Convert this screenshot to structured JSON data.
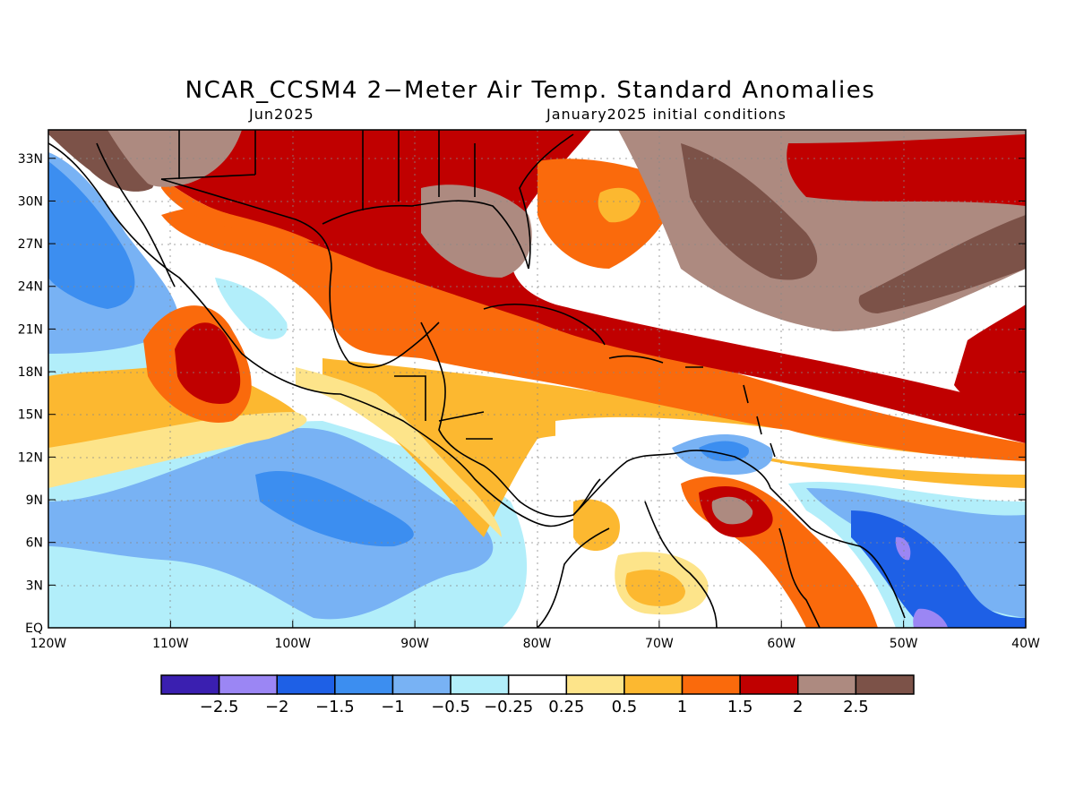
{
  "title": "NCAR_CCSM4 2−Meter Air Temp. Standard Anomalies",
  "subtitle_left": "Jun2025",
  "subtitle_right": "January2025 initial conditions",
  "map": {
    "region": "Gulf of Mexico, Caribbean, Central America, northern South America",
    "lon_range": [
      -120,
      -40
    ],
    "lat_range": [
      0,
      35
    ],
    "grid": "dotted",
    "x_ticks": [
      "120W",
      "110W",
      "100W",
      "90W",
      "80W",
      "70W",
      "60W",
      "50W",
      "40W"
    ],
    "y_ticks": [
      "EQ",
      "3N",
      "6N",
      "9N",
      "12N",
      "15N",
      "18N",
      "21N",
      "24N",
      "27N",
      "30N",
      "33N"
    ]
  },
  "colorbar": {
    "labels": [
      "−2.5",
      "−2",
      "−1.5",
      "−1",
      "−0.5",
      "−0.25",
      "0.25",
      "0.5",
      "1",
      "1.5",
      "2",
      "2.5"
    ],
    "colors": [
      "#3a1fb0",
      "#9b86f4",
      "#1e60e6",
      "#3c8ef0",
      "#78b2f4",
      "#b2eefa",
      "#ffffff",
      "#fde48a",
      "#fcb830",
      "#fa6a0c",
      "#c00000",
      "#ad8a80",
      "#7c5248"
    ]
  }
}
